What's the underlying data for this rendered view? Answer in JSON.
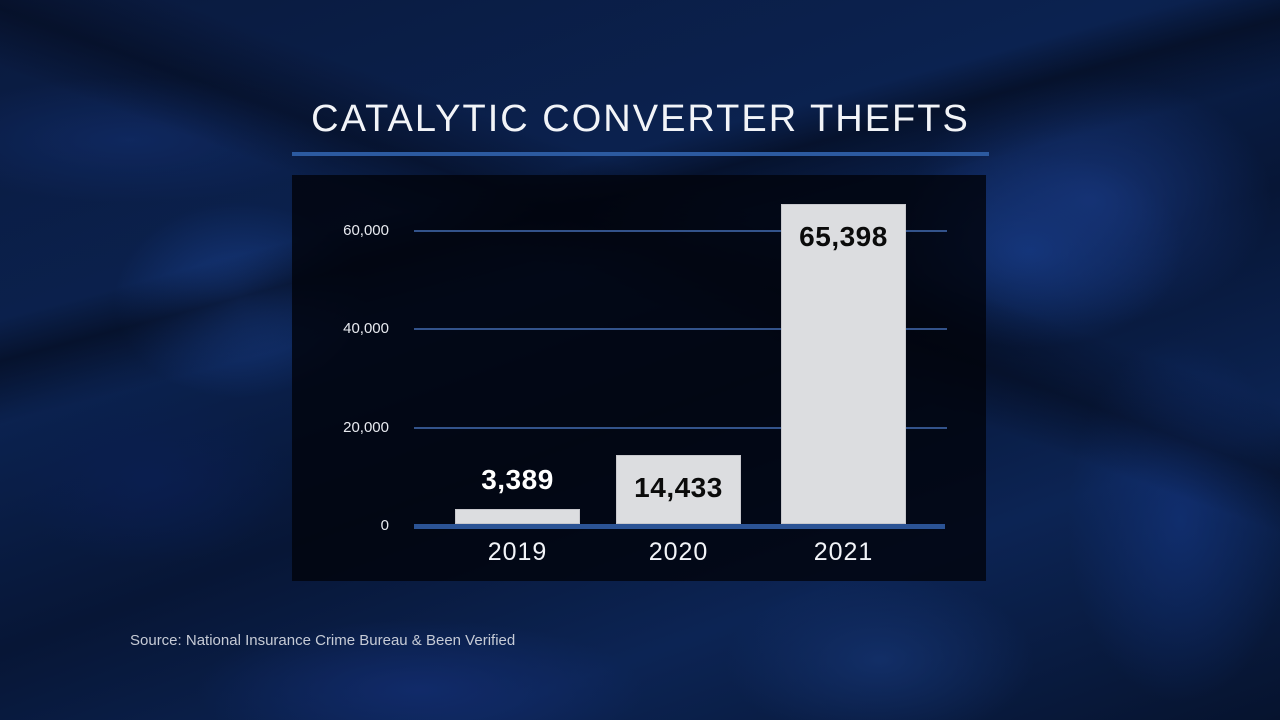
{
  "title": "CATALYTIC CONVERTER THEFTS",
  "source": "Source: National Insurance Crime Bureau & Been Verified",
  "colors": {
    "background": "#07183a",
    "accent_rule": "#2c5aa0",
    "bar_fill": "#dcdde0",
    "gridline": "#3c60a0",
    "text": "#f2f4f8"
  },
  "chart_data": {
    "type": "bar",
    "title": "CATALYTIC CONVERTER THEFTS",
    "categories": [
      "2019",
      "2020",
      "2021"
    ],
    "values": [
      3389,
      14433,
      65398
    ],
    "value_labels": [
      "3,389",
      "14,433",
      "65,398"
    ],
    "xlabel": "",
    "ylabel": "",
    "ylim": [
      0,
      66000
    ],
    "yticks": [
      0,
      20000,
      40000,
      60000
    ],
    "ytick_labels": [
      "0",
      "20,000",
      "40,000",
      "60,000"
    ],
    "grid": true,
    "legend": null,
    "source": "Source: National Insurance Crime Bureau & Been Verified"
  }
}
